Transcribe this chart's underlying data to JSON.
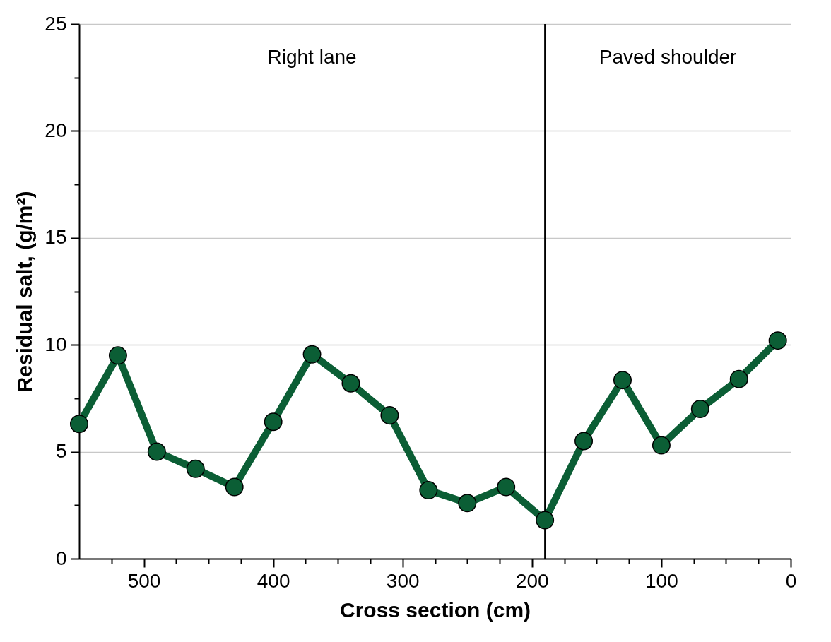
{
  "chart_data": {
    "type": "line",
    "xlabel": "Cross section (cm)",
    "ylabel": "Residual salt, (g/m²)",
    "x": [
      550,
      520,
      490,
      460,
      430,
      400,
      370,
      340,
      310,
      280,
      250,
      220,
      190,
      160,
      130,
      100,
      70,
      40,
      10
    ],
    "series": [
      {
        "color": "#0b5e35",
        "values": [
          6.3,
          9.5,
          5.0,
          4.2,
          3.35,
          6.4,
          9.55,
          8.2,
          6.7,
          3.2,
          2.6,
          3.35,
          1.8,
          5.5,
          8.35,
          5.3,
          7.0,
          8.4,
          10.2
        ]
      }
    ],
    "xlim": [
      550,
      0
    ],
    "xticks": [
      {
        "value": 525,
        "label": null
      },
      500,
      {
        "value": 475,
        "label": null
      },
      {
        "value": 450,
        "label": null
      },
      {
        "value": 425,
        "label": null
      },
      400,
      {
        "value": 375,
        "label": null
      },
      {
        "value": 350,
        "label": null
      },
      {
        "value": 325,
        "label": null
      },
      300,
      {
        "value": 275,
        "label": null
      },
      {
        "value": 250,
        "label": null
      },
      {
        "value": 225,
        "label": null
      },
      200,
      {
        "value": 175,
        "label": null
      },
      {
        "value": 150,
        "label": null
      },
      {
        "value": 125,
        "label": null
      },
      100,
      {
        "value": 75,
        "label": null
      },
      {
        "value": 50,
        "label": null
      },
      {
        "value": 25,
        "label": null
      },
      0
    ],
    "ylim": [
      0,
      25
    ],
    "yticks": [
      0,
      {
        "value": 2.5,
        "label": null
      },
      5,
      {
        "value": 7.5,
        "label": null
      },
      10,
      {
        "value": 12.5,
        "label": null
      },
      15,
      {
        "value": 17.5,
        "label": null
      },
      20,
      {
        "value": 22.5,
        "label": null
      },
      25
    ],
    "grid": "y",
    "marker": "circle",
    "line_style": "solid",
    "ref_lines": [
      {
        "axis": "x",
        "value": 190,
        "color": "#000000"
      }
    ],
    "annotations": [
      "Right lane",
      "Paved shoulder"
    ]
  }
}
